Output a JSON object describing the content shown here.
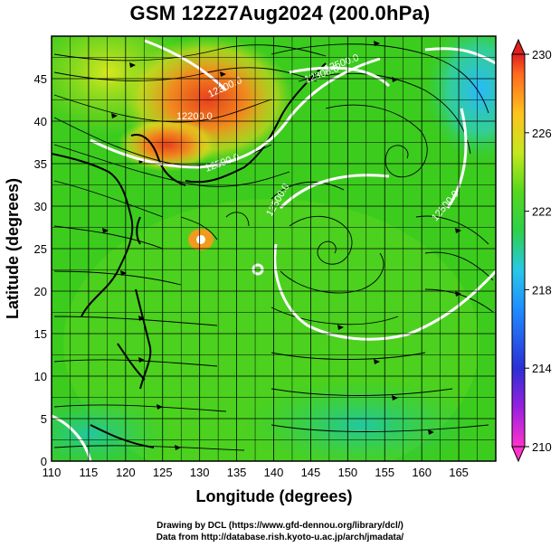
{
  "title": "GSM 12Z27Aug2024 (200.0hPa)",
  "chart_data": {
    "type": "heatmap",
    "title": "GSM 12Z27Aug2024 (200.0hPa)",
    "xlabel": "Longitude (degrees)",
    "ylabel": "Latitude  (degrees)",
    "xlim": [
      110,
      170
    ],
    "ylim": [
      0,
      50
    ],
    "x_ticks": [
      "110",
      "115",
      "120",
      "125",
      "130",
      "135",
      "140",
      "145",
      "150",
      "155",
      "160",
      "165"
    ],
    "y_ticks": [
      "0",
      "5",
      "10",
      "15",
      "20",
      "25",
      "30",
      "35",
      "40",
      "45"
    ],
    "grid": true,
    "colorbar": {
      "min": 210,
      "max": 230,
      "ticks": [
        "210",
        "214",
        "218",
        "222",
        "226",
        "230"
      ],
      "placement": "right"
    },
    "contour_labels": [
      "12300.0",
      "12300.0",
      "12200.0",
      "12500.0",
      "12500.0",
      "12500.0",
      "12500.0"
    ],
    "colors": {
      "bg_green": "#3ac81e",
      "warm": "#e8401c",
      "cool": "#28b8ff",
      "contour": "#ffffff",
      "coast": "#000000"
    }
  },
  "credit": {
    "line1": "Drawing by DCL (https://www.gfd-dennou.org/library/dcl/)",
    "line2": "Data from http://database.rish.kyoto-u.ac.jp/arch/jmadata/"
  }
}
